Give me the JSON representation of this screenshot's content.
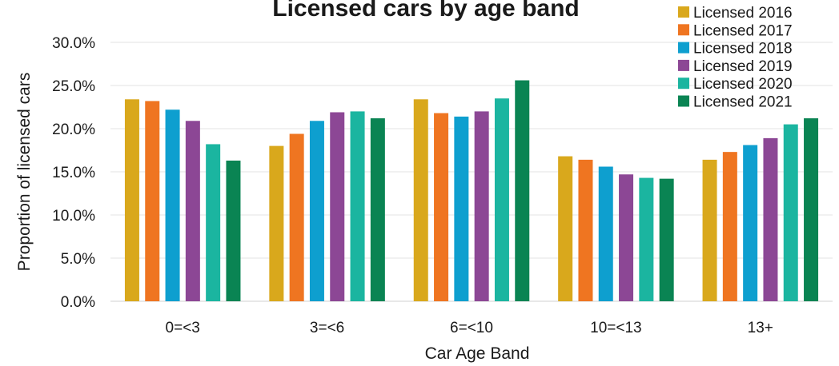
{
  "chart_data": {
    "type": "bar",
    "title": "Licensed cars by age band",
    "xlabel": "Car Age Band",
    "ylabel": "Proportion of licensed cars",
    "categories": [
      "0=<3",
      "3=<6",
      "6=<10",
      "10=<13",
      "13+"
    ],
    "ylim": [
      0,
      30
    ],
    "yticks": [
      "0.0%",
      "5.0%",
      "10.0%",
      "15.0%",
      "20.0%",
      "25.0%",
      "30.0%"
    ],
    "grid": true,
    "legend_position": "top-right",
    "series": [
      {
        "name": "Licensed 2016",
        "color": "#D9A81C",
        "values": [
          23.4,
          18.0,
          23.4,
          16.8,
          16.4
        ]
      },
      {
        "name": "Licensed 2017",
        "color": "#EF7521",
        "values": [
          23.2,
          19.4,
          21.8,
          16.4,
          17.3
        ]
      },
      {
        "name": "Licensed 2018",
        "color": "#0E9FCF",
        "values": [
          22.2,
          20.9,
          21.4,
          15.6,
          18.1
        ]
      },
      {
        "name": "Licensed 2019",
        "color": "#8C4795",
        "values": [
          20.9,
          21.9,
          22.0,
          14.7,
          18.9
        ]
      },
      {
        "name": "Licensed 2020",
        "color": "#1BB5A0",
        "values": [
          18.2,
          22.0,
          23.5,
          14.3,
          20.5
        ]
      },
      {
        "name": "Licensed 2021",
        "color": "#0A8453",
        "values": [
          16.3,
          21.2,
          25.6,
          14.2,
          21.2
        ]
      }
    ]
  }
}
